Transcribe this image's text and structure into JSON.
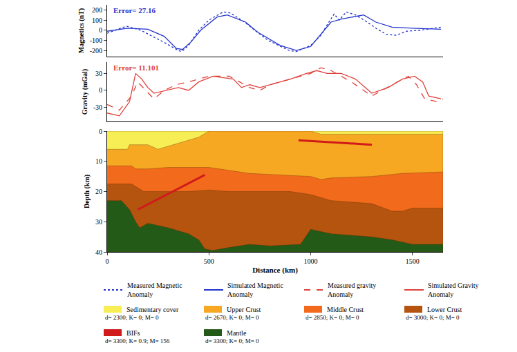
{
  "chart_data": [
    {
      "type": "line",
      "ylabel": "Magnetics (nT)",
      "annotation": "Error= 27.16",
      "xlim": [
        0,
        1650
      ],
      "ylim": [
        -260,
        250
      ],
      "yticks": [
        -200,
        -100,
        0,
        100,
        200
      ],
      "tick_labels": "y",
      "series": [
        {
          "name": "Measured Magnetic Anomaly",
          "color": "#2233cc",
          "line_style": "dot",
          "x": [
            0,
            95,
            165,
            215,
            280,
            350,
            367,
            400,
            450,
            500,
            570,
            605,
            675,
            725,
            790,
            895,
            930,
            1000,
            1050,
            1080,
            1115,
            1140,
            1175,
            1220,
            1270,
            1320,
            1370,
            1420,
            1470,
            1540,
            1640
          ],
          "values": [
            -30,
            40,
            0,
            -50,
            -120,
            -200,
            -210,
            -150,
            0,
            100,
            180,
            170,
            80,
            0,
            -100,
            -200,
            -210,
            -150,
            -50,
            50,
            160,
            100,
            180,
            150,
            90,
            20,
            -40,
            -50,
            -10,
            0,
            30
          ]
        },
        {
          "name": "Simulated Magnetic Anomaly",
          "color": "#2233cc",
          "line_style": "solid",
          "x": [
            0,
            100,
            200,
            280,
            340,
            370,
            410,
            460,
            540,
            590,
            680,
            740,
            850,
            930,
            1000,
            1050,
            1100,
            1150,
            1200,
            1260,
            1320,
            1400,
            1500,
            1640
          ],
          "values": [
            -10,
            20,
            10,
            -60,
            -180,
            -190,
            -120,
            0,
            130,
            150,
            80,
            -20,
            -150,
            -200,
            -160,
            -40,
            80,
            110,
            130,
            150,
            80,
            30,
            20,
            10
          ]
        }
      ]
    },
    {
      "type": "line",
      "ylabel": "Gravity (mGal)",
      "annotation": "Error= 11.101",
      "xlim": [
        0,
        1650
      ],
      "ylim": [
        -55,
        50
      ],
      "yticks": [
        -30,
        0,
        30
      ],
      "tick_labels": "y",
      "series": [
        {
          "name": "Measured gravity Anomaly",
          "color": "#e0403a",
          "line_style": "dash",
          "x": [
            0,
            60,
            120,
            150,
            190,
            230,
            280,
            340,
            400,
            500,
            600,
            700,
            750,
            800,
            900,
            1000,
            1050,
            1100,
            1200,
            1300,
            1400,
            1480,
            1520,
            1560,
            1620,
            1650
          ],
          "values": [
            -25,
            -35,
            -10,
            15,
            0,
            -15,
            0,
            10,
            15,
            25,
            25,
            5,
            0,
            10,
            20,
            30,
            40,
            35,
            15,
            -10,
            10,
            25,
            10,
            -15,
            -20,
            -15
          ]
        },
        {
          "name": "Simulated Gravity Anomaly",
          "color": "#e0403a",
          "line_style": "solid",
          "x": [
            0,
            60,
            110,
            140,
            170,
            200,
            230,
            290,
            350,
            400,
            450,
            520,
            620,
            660,
            700,
            750,
            800,
            900,
            980,
            1030,
            1080,
            1150,
            1220,
            1300,
            1380,
            1450,
            1510,
            1550,
            1580,
            1640
          ],
          "values": [
            -40,
            -45,
            -20,
            30,
            20,
            5,
            -5,
            0,
            5,
            0,
            15,
            25,
            20,
            5,
            10,
            5,
            10,
            20,
            30,
            35,
            30,
            30,
            20,
            -5,
            5,
            20,
            25,
            15,
            -10,
            -15
          ]
        }
      ]
    },
    {
      "type": "area",
      "xlabel": "Distance (km)",
      "ylabel": "Depth (km)",
      "xlim": [
        0,
        1650
      ],
      "xticks": [
        0,
        500,
        1000,
        1500
      ],
      "ylim": [
        40,
        0
      ],
      "yticks": [
        0,
        10,
        20,
        30,
        40
      ],
      "legend": "bottom",
      "layers": [
        {
          "name": "Sedimentary cover",
          "description": "d= 2300; K= 0; M= 0",
          "type": "area",
          "color": "#f7ee55",
          "x": [
            0,
            1650
          ],
          "values": [
            0,
            0
          ]
        },
        {
          "name": "Upper Crust",
          "description": "d= 2670; K= 0; M= 0",
          "type": "area",
          "color": "#f7a823",
          "x": [
            0,
            100,
            110,
            200,
            250,
            350,
            450,
            500,
            900,
            1000,
            1050,
            1650
          ],
          "values": [
            6,
            6,
            4.5,
            4.5,
            6,
            4,
            2,
            0,
            0,
            0,
            1,
            1
          ]
        },
        {
          "name": "Middle Crust",
          "description": "d= 2850; K= 0; M= 0",
          "type": "area",
          "color": "#f26a1b",
          "x": [
            0,
            120,
            140,
            200,
            300,
            500,
            700,
            1000,
            1050,
            1100,
            1300,
            1450,
            1650
          ],
          "values": [
            11.5,
            11.5,
            12.5,
            12.5,
            12,
            12,
            14,
            15,
            16,
            15.5,
            15,
            14,
            13.5
          ]
        },
        {
          "name": "Lower Crust",
          "description": "d= 3000; K= 0; M= 0",
          "type": "area",
          "color": "#b4540f",
          "x": [
            0,
            120,
            180,
            300,
            400,
            500,
            600,
            900,
            1000,
            1100,
            1300,
            1400,
            1450,
            1500,
            1650
          ],
          "values": [
            17.5,
            17.5,
            20,
            20,
            20,
            19.5,
            20,
            20,
            21,
            23,
            24,
            26.5,
            26.5,
            25.5,
            25.5
          ]
        },
        {
          "name": "BIFs",
          "description": "d= 3300; K= 0.9; M= 156",
          "type": "line",
          "color": "#d11a1a",
          "x": [
            150,
            480,
            700,
            940,
            1300
          ],
          "values": [
            26,
            14.5,
            null,
            3,
            4.5
          ]
        },
        {
          "name": "Mantle",
          "description": "d= 3300; K= 0; M= 0",
          "type": "area",
          "color": "#235a17",
          "x": [
            0,
            70,
            110,
            140,
            160,
            200,
            300,
            400,
            450,
            480,
            520,
            600,
            700,
            800,
            950,
            1000,
            1100,
            1300,
            1400,
            1500,
            1650
          ],
          "values": [
            23,
            23,
            26,
            30,
            32,
            30.5,
            32,
            34,
            36,
            39,
            39.5,
            38.5,
            37.5,
            38,
            37.5,
            32.5,
            34,
            35,
            36,
            37.5,
            37.5
          ]
        }
      ]
    }
  ]
}
